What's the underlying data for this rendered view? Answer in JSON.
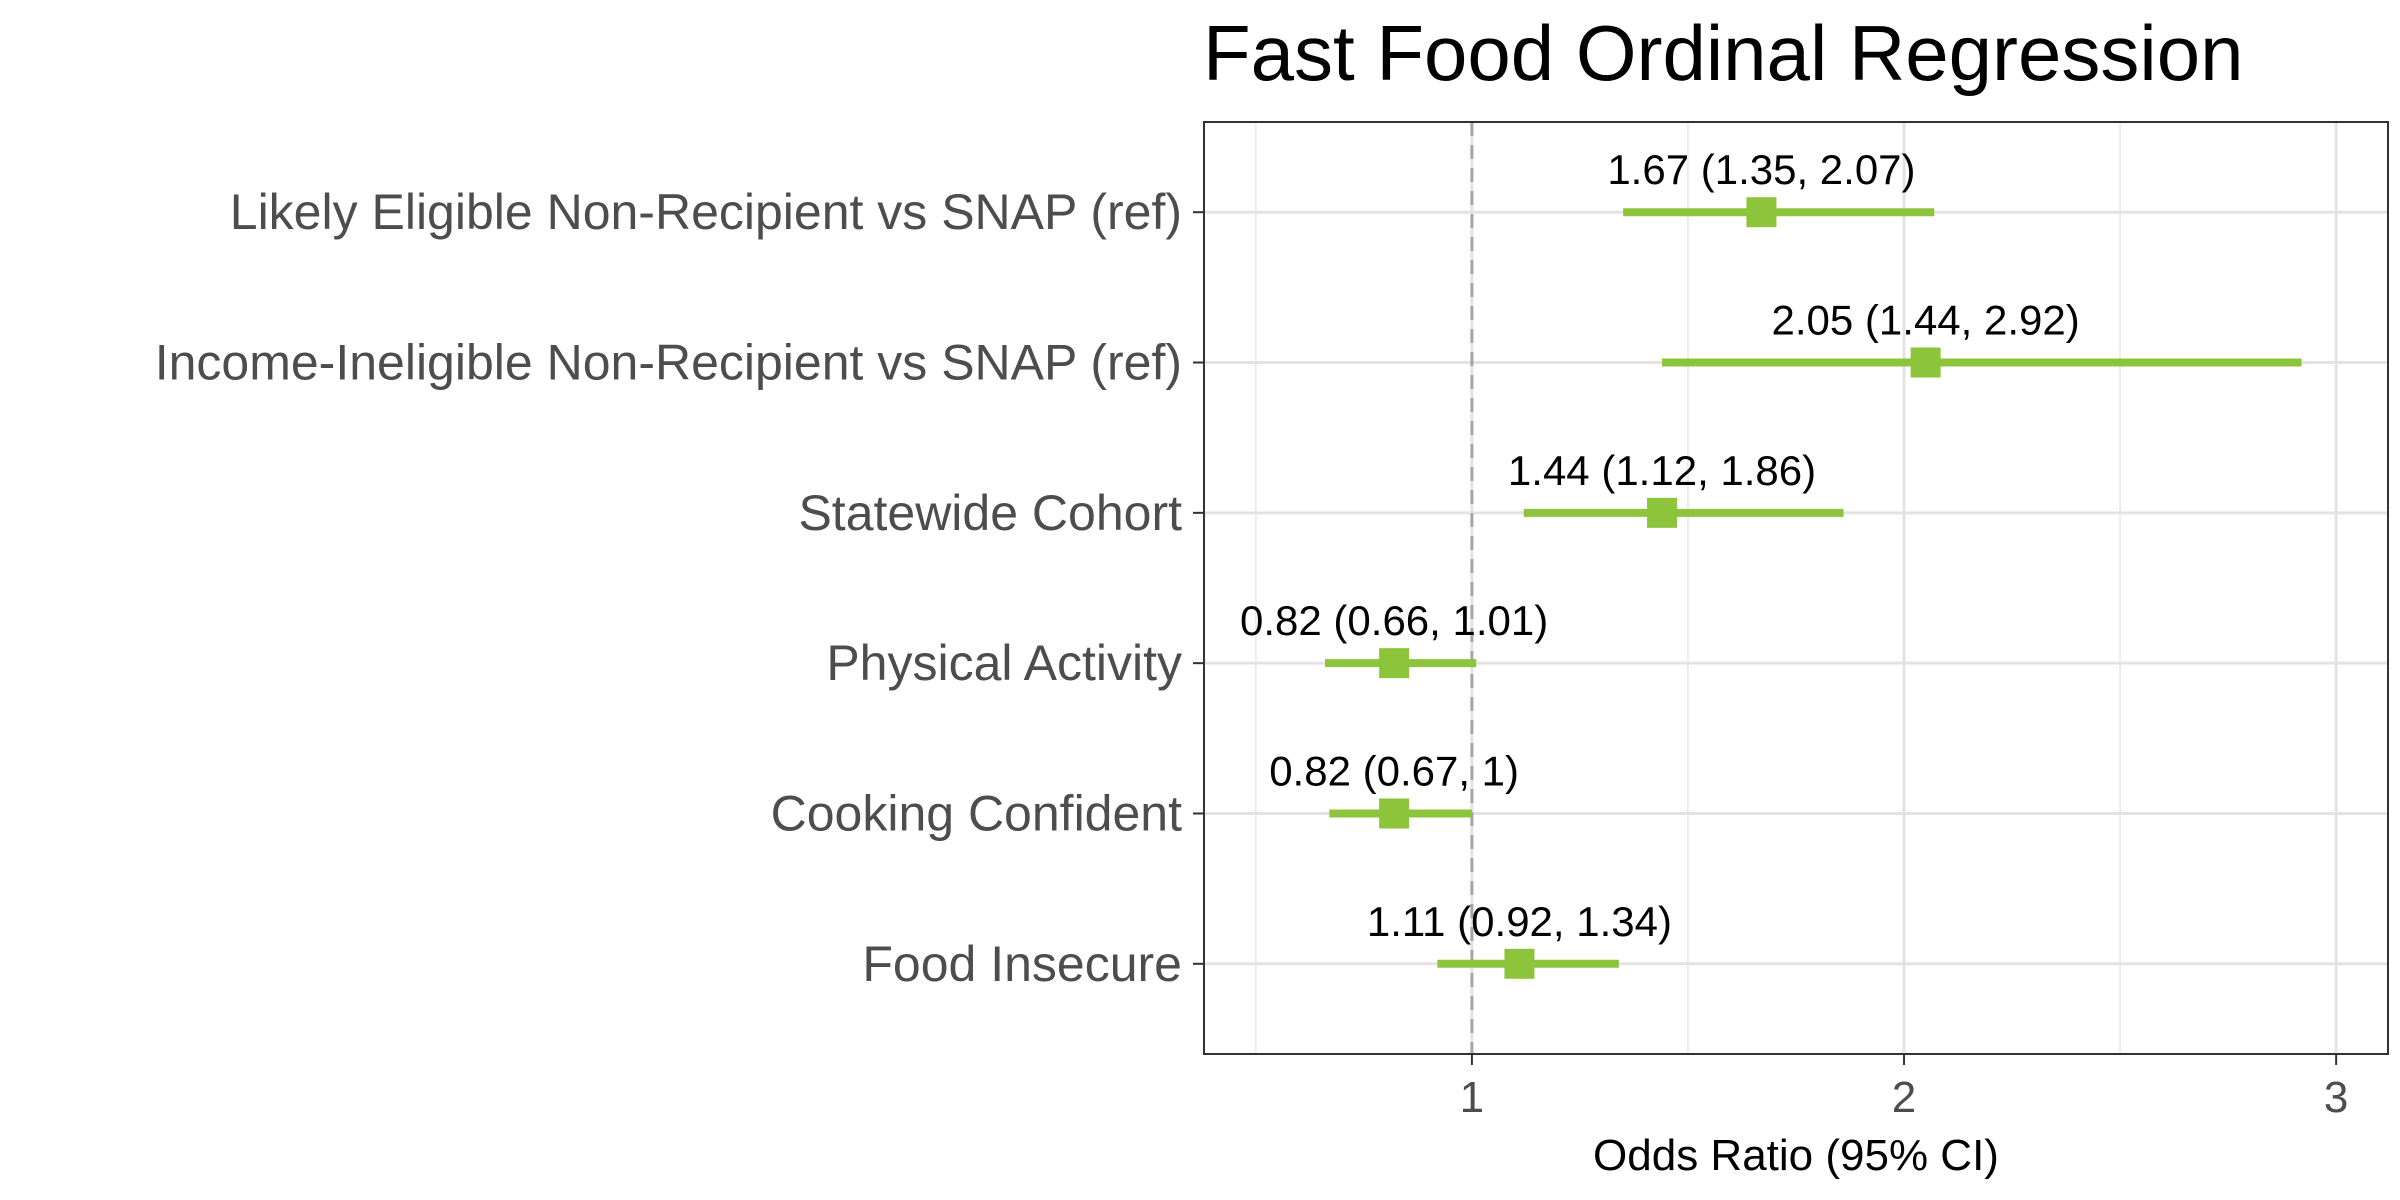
{
  "chart_data": {
    "type": "forest",
    "title": "Fast Food Ordinal Regression",
    "xlabel": "Odds Ratio (95% CI)",
    "ylabel": "",
    "xlim": [
      0.38,
      3.12
    ],
    "xticks": [
      1,
      2,
      3
    ],
    "xtick_labels": [
      "1",
      "2",
      "3"
    ],
    "reference_line": 1,
    "grid": true,
    "point_color": "#8cc43c",
    "reference_color": "#a6a6a6",
    "rows": [
      {
        "label": "Likely Eligible Non-Recipient vs SNAP (ref)",
        "estimate": 1.67,
        "lower": 1.35,
        "upper": 2.07,
        "text": "1.67 (1.35, 2.07)"
      },
      {
        "label": "Income-Ineligible Non-Recipient vs SNAP (ref)",
        "estimate": 2.05,
        "lower": 1.44,
        "upper": 2.92,
        "text": "2.05 (1.44, 2.92)"
      },
      {
        "label": "Statewide Cohort",
        "estimate": 1.44,
        "lower": 1.12,
        "upper": 1.86,
        "text": "1.44 (1.12, 1.86)"
      },
      {
        "label": "Physical Activity",
        "estimate": 0.82,
        "lower": 0.66,
        "upper": 1.01,
        "text": "0.82 (0.66, 1.01)"
      },
      {
        "label": "Cooking Confident",
        "estimate": 0.82,
        "lower": 0.67,
        "upper": 1.0,
        "text": "0.82 (0.67, 1)"
      },
      {
        "label": "Food Insecure",
        "estimate": 1.11,
        "lower": 0.92,
        "upper": 1.34,
        "text": "1.11 (0.92, 1.34)"
      }
    ]
  }
}
